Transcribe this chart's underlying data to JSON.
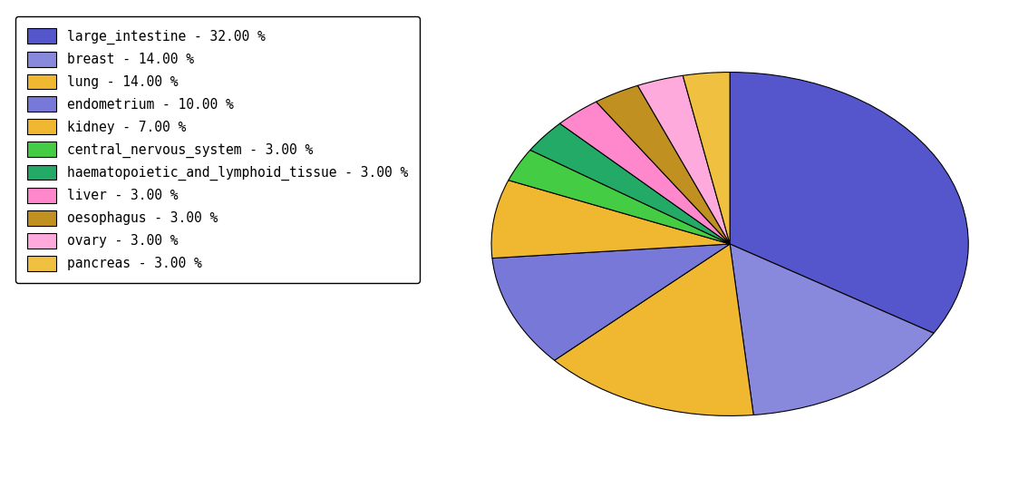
{
  "labels": [
    "large_intestine - 32.00 %",
    "breast - 14.00 %",
    "lung - 14.00 %",
    "endometrium - 10.00 %",
    "kidney - 7.00 %",
    "central_nervous_system - 3.00 %",
    "haematopoietic_and_lymphoid_tissue - 3.00 %",
    "liver - 3.00 %",
    "oesophagus - 3.00 %",
    "ovary - 3.00 %",
    "pancreas - 3.00 %"
  ],
  "values": [
    32,
    14,
    14,
    10,
    7,
    3,
    3,
    3,
    3,
    3,
    3
  ],
  "colors": [
    "#5555cc",
    "#8888dd",
    "#f0b830",
    "#7878d8",
    "#f0b830",
    "#44cc44",
    "#22aa66",
    "#ff88cc",
    "#c09020",
    "#ffaadd",
    "#f0c040"
  ],
  "legend_labels": [
    "large_intestine - 32.00 %",
    "breast - 14.00 %",
    "lung - 14.00 %",
    "endometrium - 10.00 %",
    "kidney - 7.00 %",
    "central_nervous_system - 3.00 %",
    "haematopoietic_and_lymphoid_tissue - 3.00 %",
    "liver - 3.00 %",
    "oesophagus - 3.00 %",
    "ovary - 3.00 %",
    "pancreas - 3.00 %"
  ],
  "startangle": 90,
  "figsize": [
    11.34,
    5.38
  ],
  "dpi": 100,
  "aspect_ratio": 0.72
}
